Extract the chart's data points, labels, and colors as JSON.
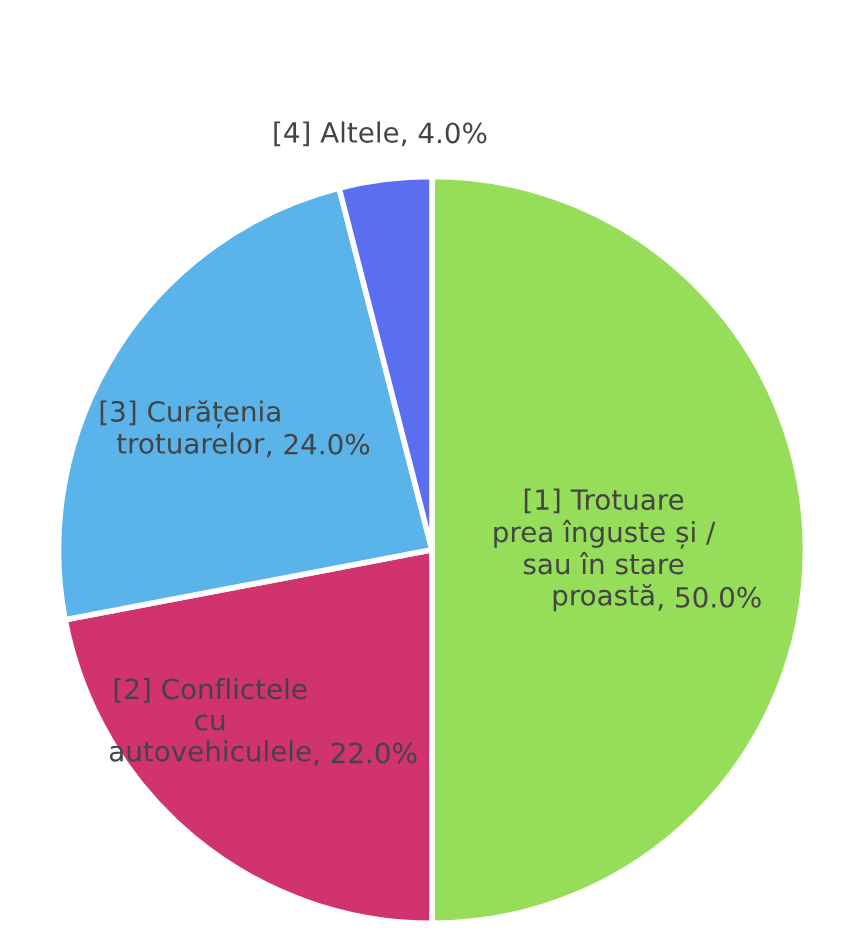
{
  "chart_data": {
    "type": "pie",
    "categories": [
      "[1] Trotuare\nprea înguste și /\nsau în stare\nproastă",
      "[2] Conflictele\ncu\nautovehiculele",
      "[3] Curățenia\ntrotuarelor",
      "[4] Altele"
    ],
    "values": [
      50.0,
      22.0,
      24.0,
      4.0
    ],
    "value_labels": [
      ", 50.0%",
      ", 22.0%",
      ", 24.0%",
      ", 4.0%"
    ],
    "colors": [
      "#96de5a",
      "#d1336e",
      "#5ab4ea",
      "#5b6ef0"
    ]
  }
}
